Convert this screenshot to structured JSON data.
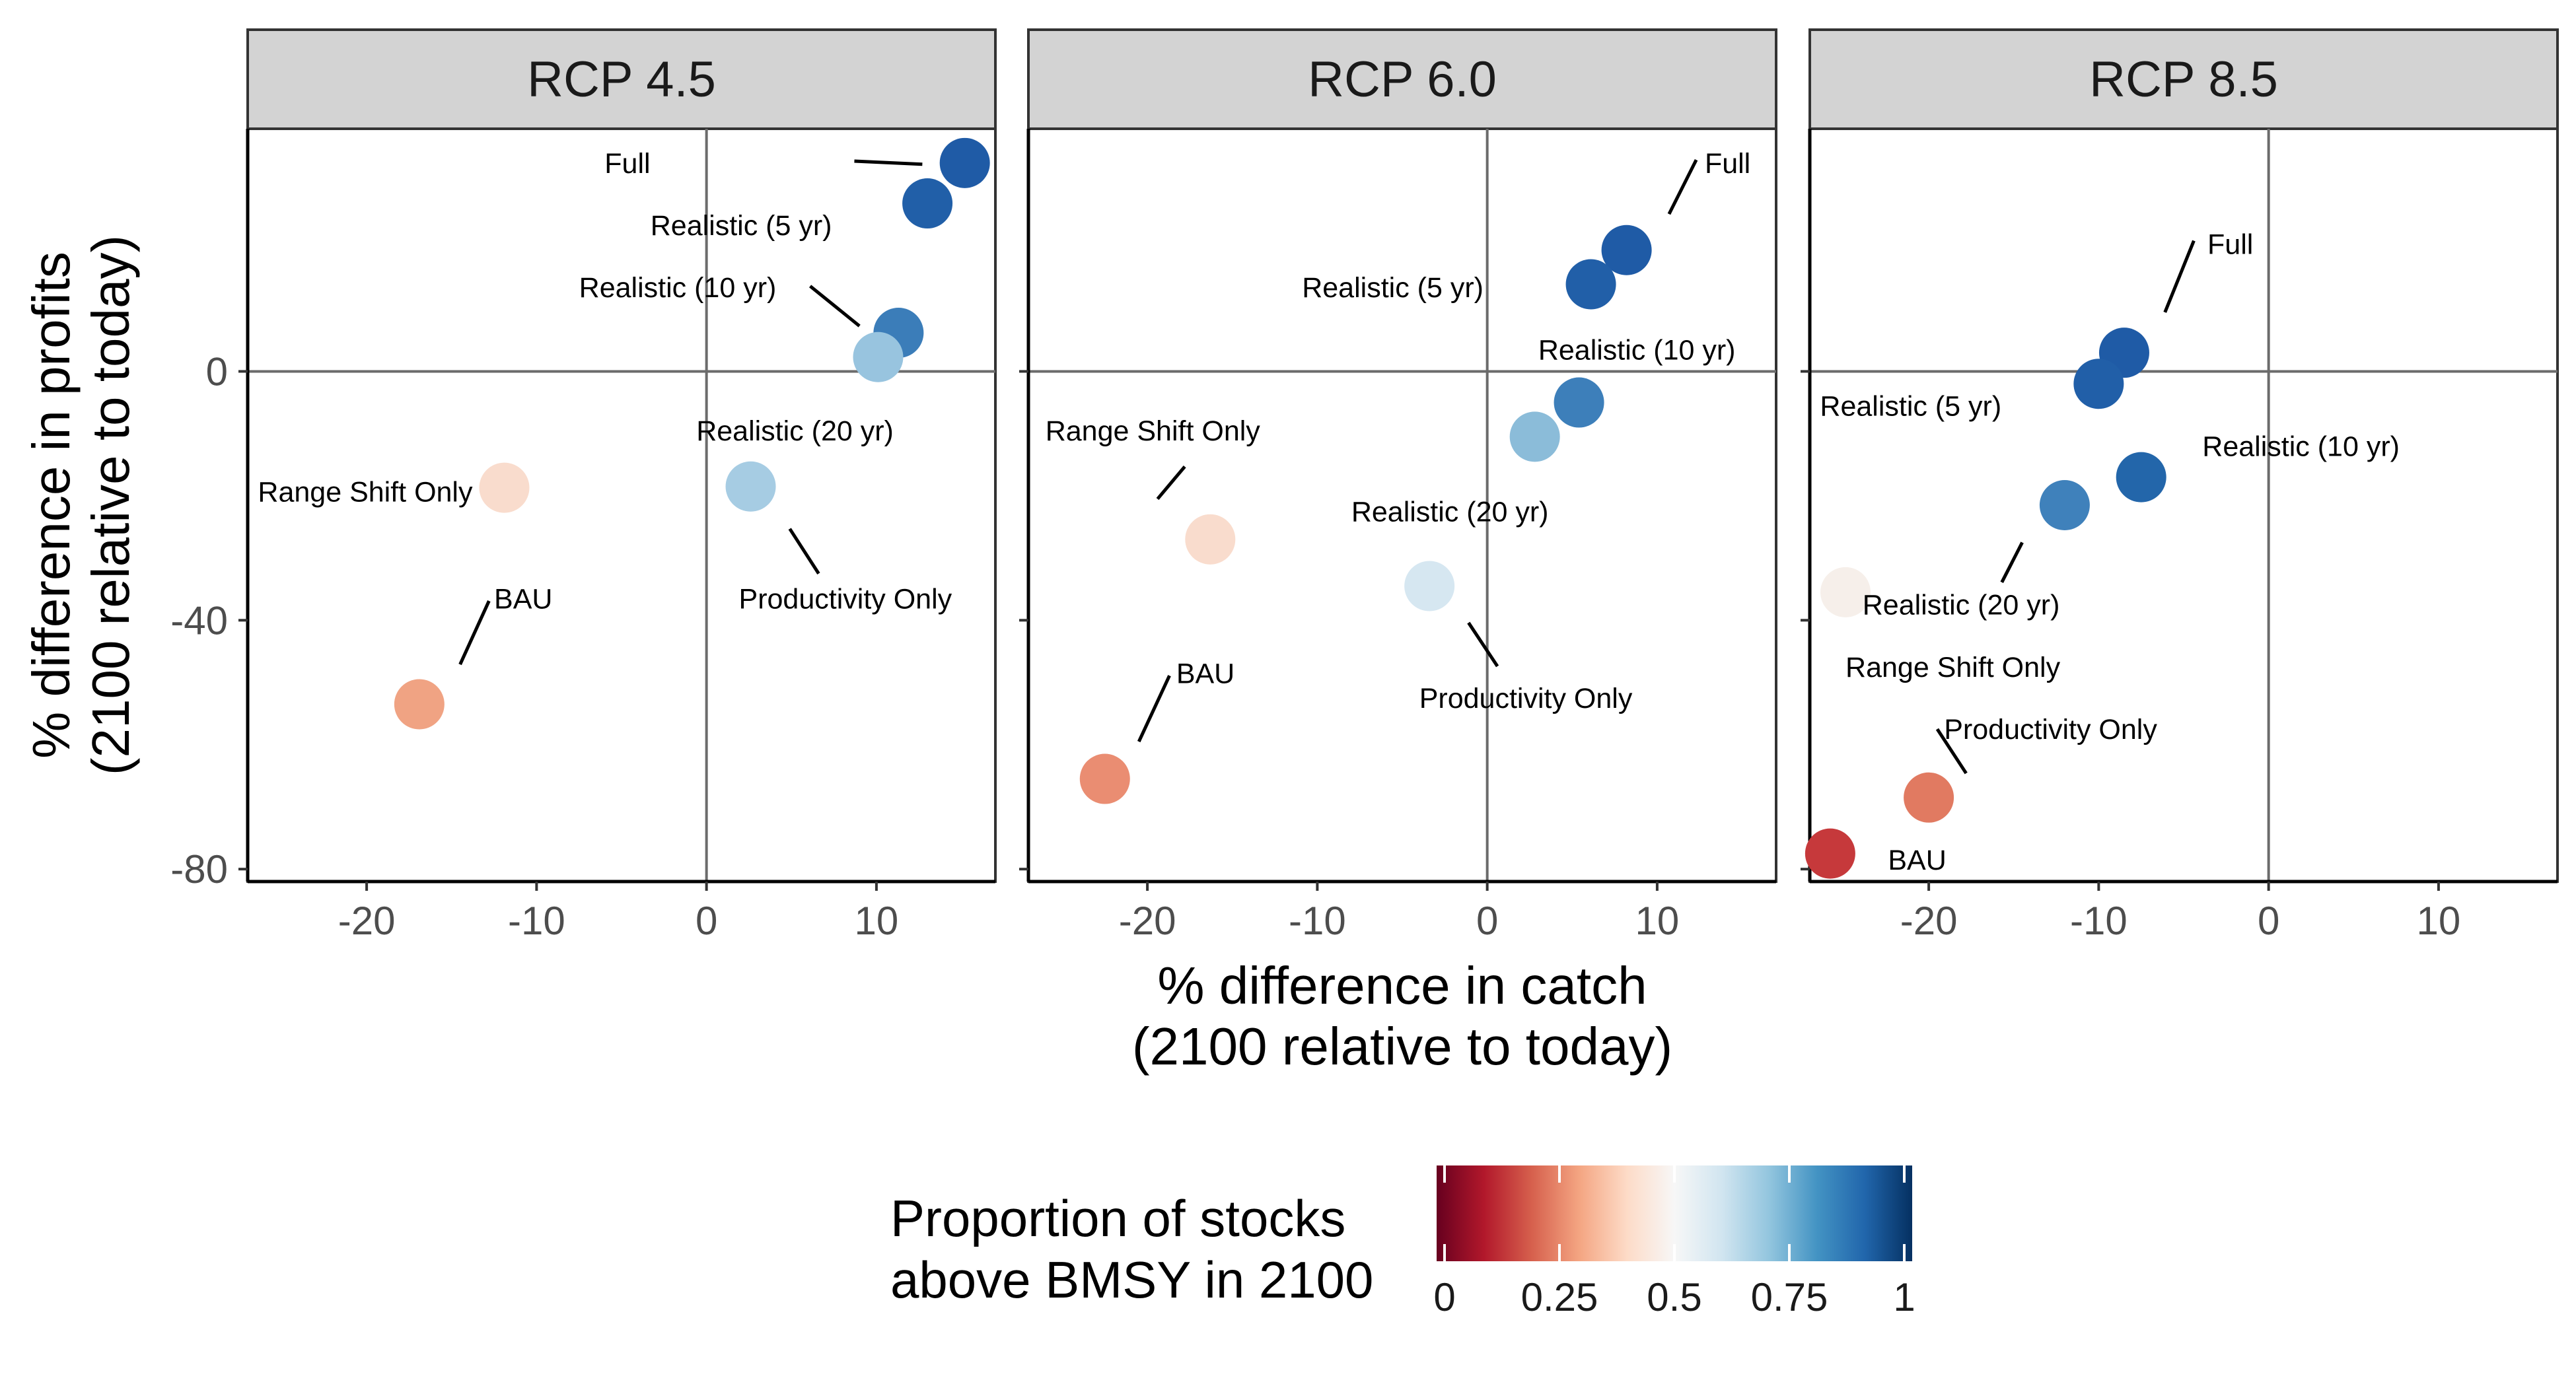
{
  "chart_data": {
    "type": "scatter",
    "xlabel": [
      "% difference in catch",
      "(2100 relative to today)"
    ],
    "ylabel": [
      "% difference in profits",
      "(2100 relative to today)"
    ],
    "xlim": [
      -27,
      17
    ],
    "ylim": [
      -82,
      39
    ],
    "xticks": [
      -20,
      -10,
      0,
      10
    ],
    "xtick_labels": [
      "-20",
      "-10",
      "0",
      "10"
    ],
    "yticks": [
      -80,
      -40,
      0
    ],
    "ytick_labels": [
      "-80",
      "-40",
      "0"
    ],
    "reference_lines": {
      "x": 0,
      "y": 0
    },
    "grid": false,
    "legend": {
      "title": [
        "Proportion of stocks",
        "above BMSY in 2100"
      ],
      "placement": "bottom",
      "type": "colorbar",
      "ticks": [
        0,
        0.25,
        0.5,
        0.75,
        1
      ],
      "tick_labels": [
        "0",
        "0.25",
        "0.5",
        "0.75",
        "1"
      ],
      "colors": [
        "#67001f",
        "#b2182b",
        "#d6604d",
        "#f4a582",
        "#fddbc7",
        "#f7f7f7",
        "#d1e5f0",
        "#92c5de",
        "#4393c3",
        "#2166ac",
        "#053061"
      ]
    },
    "panels": [
      {
        "title": "RCP 4.5",
        "points": [
          {
            "label": "Full",
            "x": 15.2,
            "y": 33.5,
            "color": "#1f5ba6"
          },
          {
            "label": "Realistic (5 yr)",
            "x": 13.0,
            "y": 27.0,
            "color": "#215fa8"
          },
          {
            "label": "Realistic (10 yr)",
            "x": 11.3,
            "y": 6.2,
            "color": "#3b7db9"
          },
          {
            "label": "",
            "x": 10.1,
            "y": 2.3,
            "color": "#98c4df"
          },
          {
            "label": "Realistic (20 yr)",
            "x": 2.6,
            "y": -18.5,
            "color": "#a6cce3"
          },
          {
            "label": "Range Shift Only",
            "x": -11.9,
            "y": -18.7,
            "color": "#f9dccd"
          },
          {
            "label": "BAU",
            "x": -16.9,
            "y": -53.5,
            "color": "#f0a383"
          }
        ],
        "labels": [
          {
            "text": "Full",
            "x": -6.0,
            "y": 33.5
          },
          {
            "text": "Realistic (5 yr)",
            "x": -3.3,
            "y": 23.5
          },
          {
            "text": "Realistic (10 yr)",
            "x": -7.5,
            "y": 13.5
          },
          {
            "text": "Realistic (20 yr)",
            "x": -0.6,
            "y": -9.5
          },
          {
            "text": "Range Shift Only",
            "x": -26.4,
            "y": -19.3
          },
          {
            "text": "Productivity Only",
            "x": 1.9,
            "y": -36.5
          },
          {
            "text": "BAU",
            "x": -12.5,
            "y": -36.5
          }
        ],
        "leaders": [
          {
            "from": [
              8.7,
              33.8
            ],
            "to": [
              12.7,
              33.3
            ]
          },
          {
            "from": [
              6.1,
              13.7
            ],
            "to": [
              9.0,
              7.3
            ]
          },
          {
            "from": [
              4.9,
              -25.3
            ],
            "to": [
              6.6,
              -32.5
            ]
          },
          {
            "from": [
              -12.8,
              -36.9
            ],
            "to": [
              -14.5,
              -47.1
            ]
          }
        ]
      },
      {
        "title": "RCP 6.0",
        "points": [
          {
            "label": "Full",
            "x": 8.2,
            "y": 19.5,
            "color": "#1f5ba6"
          },
          {
            "label": "Realistic (5 yr)",
            "x": 6.1,
            "y": 14.0,
            "color": "#215fa8"
          },
          {
            "label": "Realistic (10 yr)",
            "x": 5.4,
            "y": -5.0,
            "color": "#3d7fba"
          },
          {
            "label": "",
            "x": 2.8,
            "y": -10.5,
            "color": "#8bbcd9"
          },
          {
            "label": "Realistic (20 yr)",
            "x": -3.4,
            "y": -34.5,
            "color": "#d6e7f1"
          },
          {
            "label": "Range Shift Only",
            "x": -16.3,
            "y": -27.0,
            "color": "#f9dccd"
          },
          {
            "label": "BAU",
            "x": -22.5,
            "y": -65.5,
            "color": "#ea8d72"
          }
        ],
        "labels": [
          {
            "text": "Full",
            "x": 12.8,
            "y": 33.5
          },
          {
            "text": "Realistic (5 yr)",
            "x": -10.9,
            "y": 13.5
          },
          {
            "text": "Realistic (10 yr)",
            "x": 3.0,
            "y": 3.5
          },
          {
            "text": "Realistic (20 yr)",
            "x": -8.0,
            "y": -22.5
          },
          {
            "text": "Range Shift Only",
            "x": -26.0,
            "y": -9.5
          },
          {
            "text": "Productivity Only",
            "x": -4.0,
            "y": -52.5
          },
          {
            "text": "BAU",
            "x": -18.3,
            "y": -48.5
          }
        ],
        "leaders": [
          {
            "from": [
              12.3,
              34.0
            ],
            "to": [
              10.7,
              25.3
            ]
          },
          {
            "from": [
              -17.8,
              -15.3
            ],
            "to": [
              -19.4,
              -20.5
            ]
          },
          {
            "from": [
              -1.1,
              -40.4
            ],
            "to": [
              0.6,
              -47.4
            ]
          },
          {
            "from": [
              -18.7,
              -48.9
            ],
            "to": [
              -20.5,
              -59.5
            ]
          }
        ]
      },
      {
        "title": "RCP 8.5",
        "points": [
          {
            "label": "Full",
            "x": -8.5,
            "y": 3.0,
            "color": "#1f5ba6"
          },
          {
            "label": "Realistic (5 yr)",
            "x": -10.0,
            "y": -2.0,
            "color": "#215fa8"
          },
          {
            "label": "Realistic (10 yr)",
            "x": -7.5,
            "y": -17.0,
            "color": "#2366aa"
          },
          {
            "label": "Realistic (20 yr)",
            "x": -12.0,
            "y": -21.5,
            "color": "#3f81bb"
          },
          {
            "label": "Range Shift Only",
            "x": -24.9,
            "y": -35.5,
            "color": "#f6efea"
          },
          {
            "label": "Productivity Only",
            "x": -20.0,
            "y": -68.5,
            "color": "#e17a61"
          },
          {
            "label": "BAU",
            "x": -25.8,
            "y": -77.5,
            "color": "#c6393b"
          }
        ],
        "labels": [
          {
            "text": "Full",
            "x": -3.6,
            "y": 20.5
          },
          {
            "text": "Realistic (5 yr)",
            "x": -26.4,
            "y": -5.5
          },
          {
            "text": "Realistic (10 yr)",
            "x": -3.9,
            "y": -12.0
          },
          {
            "text": "Realistic (20 yr)",
            "x": -23.9,
            "y": -37.5
          },
          {
            "text": "Range Shift Only",
            "x": -24.9,
            "y": -47.5
          },
          {
            "text": "Productivity Only",
            "x": -19.1,
            "y": -57.5
          },
          {
            "text": "BAU",
            "x": -22.4,
            "y": -78.5
          }
        ],
        "leaders": [
          {
            "from": [
              -4.4,
              21.0
            ],
            "to": [
              -6.1,
              9.5
            ]
          },
          {
            "from": [
              -14.5,
              -27.5
            ],
            "to": [
              -15.7,
              -33.9
            ]
          },
          {
            "from": [
              -19.5,
              -57.5
            ],
            "to": [
              -17.8,
              -64.6
            ]
          }
        ]
      }
    ]
  }
}
